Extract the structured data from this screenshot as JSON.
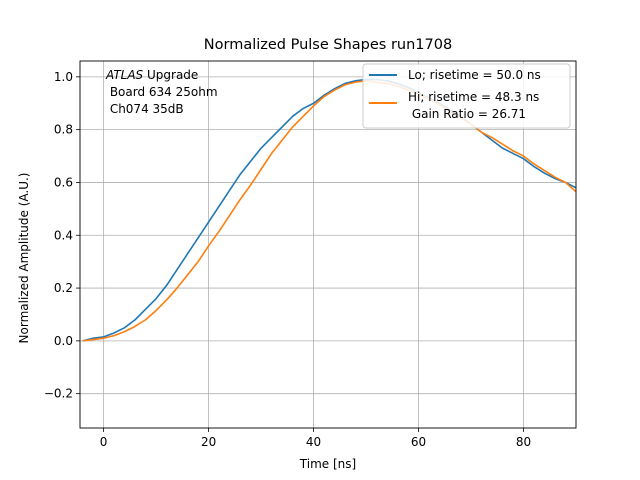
{
  "chart_data": {
    "type": "line",
    "title": "Normalized Pulse Shapes run1708",
    "xlabel": "Time [ns]",
    "ylabel": "Normalized Amplitude (A.U.)",
    "xlim": [
      -4.5,
      90
    ],
    "ylim": [
      -0.33,
      1.06
    ],
    "xticks": [
      0,
      20,
      40,
      60,
      80
    ],
    "yticks": [
      -0.2,
      0.0,
      0.2,
      0.4,
      0.6,
      0.8,
      1.0
    ],
    "xtick_labels": [
      "0",
      "20",
      "40",
      "60",
      "80"
    ],
    "ytick_labels": [
      "−0.2",
      "0.0",
      "0.2",
      "0.4",
      "0.6",
      "0.8",
      "1.0"
    ],
    "grid": true,
    "legend_position": "top-right",
    "annotation": {
      "italic": "ATLAS",
      "line1_rest": " Upgrade",
      "line2": " Board 634 25ohm",
      "line3": " Ch074 35dB"
    },
    "series": [
      {
        "name": "Lo; risetime = 50.0 ns",
        "color": "#1f77b4",
        "x": [
          -4,
          -2,
          0,
          2,
          4,
          6,
          8,
          10,
          12,
          14,
          16,
          18,
          20,
          22,
          24,
          26,
          28,
          30,
          32,
          34,
          36,
          38,
          40,
          42,
          44,
          46,
          48,
          50,
          52,
          54,
          56,
          58,
          60,
          62,
          64,
          66,
          68,
          70,
          72,
          74,
          76,
          78,
          80,
          82,
          84,
          86,
          88,
          90
        ],
        "y": [
          0.0,
          0.01,
          0.015,
          0.03,
          0.05,
          0.08,
          0.12,
          0.16,
          0.21,
          0.27,
          0.33,
          0.39,
          0.45,
          0.51,
          0.57,
          0.63,
          0.68,
          0.73,
          0.77,
          0.81,
          0.85,
          0.88,
          0.9,
          0.93,
          0.955,
          0.975,
          0.985,
          0.99,
          0.99,
          0.985,
          0.975,
          0.96,
          0.94,
          0.92,
          0.9,
          0.875,
          0.85,
          0.82,
          0.79,
          0.76,
          0.73,
          0.71,
          0.69,
          0.66,
          0.635,
          0.615,
          0.6,
          0.58
        ]
      },
      {
        "name": "Hi; risetime = 48.3 ns\n Gain Ratio = 26.71",
        "color": "#ff7f0e",
        "x": [
          -4,
          -2,
          0,
          2,
          4,
          6,
          8,
          10,
          12,
          14,
          16,
          18,
          20,
          22,
          24,
          26,
          28,
          30,
          32,
          34,
          36,
          38,
          40,
          42,
          44,
          46,
          48,
          50,
          52,
          54,
          56,
          58,
          60,
          62,
          64,
          66,
          68,
          70,
          72,
          74,
          76,
          78,
          80,
          82,
          84,
          86,
          88,
          90
        ],
        "y": [
          0.0,
          0.005,
          0.01,
          0.02,
          0.035,
          0.055,
          0.08,
          0.115,
          0.155,
          0.2,
          0.25,
          0.3,
          0.36,
          0.415,
          0.475,
          0.535,
          0.59,
          0.65,
          0.71,
          0.76,
          0.81,
          0.85,
          0.89,
          0.925,
          0.95,
          0.97,
          0.98,
          0.985,
          0.98,
          0.975,
          0.965,
          0.95,
          0.935,
          0.915,
          0.895,
          0.87,
          0.845,
          0.82,
          0.79,
          0.77,
          0.745,
          0.72,
          0.7,
          0.67,
          0.645,
          0.62,
          0.6,
          0.565
        ]
      }
    ]
  }
}
